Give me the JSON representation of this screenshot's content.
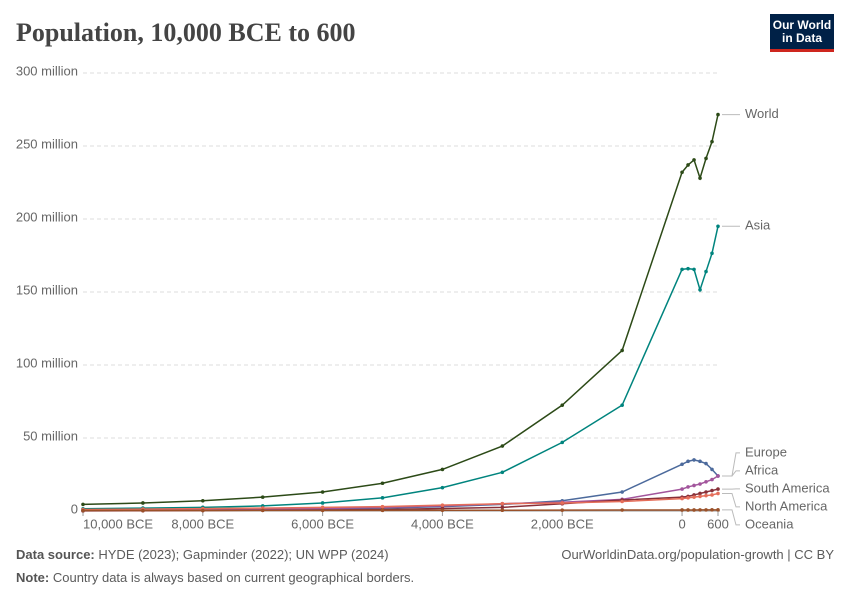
{
  "chart_data": {
    "type": "line",
    "title": "Population, 10,000 BCE to 600",
    "logo": [
      "Our World",
      "in Data"
    ],
    "x": [
      -10000,
      -9000,
      -8000,
      -7000,
      -6000,
      -5000,
      -4000,
      -3000,
      -2000,
      -1000,
      0,
      100,
      200,
      300,
      400,
      500,
      600
    ],
    "xlim": [
      -10000,
      600
    ],
    "xticks": [
      {
        "value": -10000,
        "label": "10,000 BCE"
      },
      {
        "value": -8000,
        "label": "8,000 BCE"
      },
      {
        "value": -6000,
        "label": "6,000 BCE"
      },
      {
        "value": -4000,
        "label": "4,000 BCE"
      },
      {
        "value": -2000,
        "label": "2,000 BCE"
      },
      0,
      600
    ],
    "ylim": [
      0,
      300000000
    ],
    "yticks": [
      0,
      {
        "value": 50000000,
        "label": "50 million"
      },
      {
        "value": 100000000,
        "label": "100 million"
      },
      {
        "value": 150000000,
        "label": "150 million"
      },
      {
        "value": 200000000,
        "label": "200 million"
      },
      {
        "value": 250000000,
        "label": "250 million"
      },
      {
        "value": 300000000,
        "label": "300 million"
      }
    ],
    "grid": true,
    "series": [
      {
        "name": "World",
        "color": "#2c4a17",
        "values": [
          4500000,
          5500000,
          7000000,
          9500000,
          13000000,
          19000000,
          28500000,
          44500000,
          72500000,
          110000000,
          232000000,
          237000000,
          240500000,
          228000000,
          241500000,
          253000000,
          271500000
        ]
      },
      {
        "name": "Asia",
        "color": "#00847e",
        "values": [
          1500000,
          2000000,
          2500000,
          3500000,
          5500000,
          9000000,
          16000000,
          26500000,
          47000000,
          72500000,
          165500000,
          166000000,
          165500000,
          151500000,
          164000000,
          176500000,
          195000000
        ]
      },
      {
        "name": "Europe",
        "color": "#4c6a9c",
        "values": [
          300000,
          400000,
          600000,
          1000000,
          1500000,
          2000000,
          3000000,
          4500000,
          7000000,
          13000000,
          32000000,
          34000000,
          35000000,
          34000000,
          32500000,
          28500000,
          24000000
        ]
      },
      {
        "name": "Africa",
        "color": "#a2559c",
        "values": [
          200000,
          400000,
          700000,
          1100000,
          1700000,
          2500000,
          3500000,
          5000000,
          6000000,
          8000000,
          15000000,
          16500000,
          17500000,
          18500000,
          20000000,
          21500000,
          24000000
        ]
      },
      {
        "name": "South America",
        "color": "#883039",
        "values": [
          100000,
          200000,
          300000,
          500000,
          700000,
          1000000,
          1700000,
          2500000,
          5000000,
          7500000,
          9500000,
          10000000,
          11000000,
          12000000,
          13000000,
          14000000,
          15000000
        ]
      },
      {
        "name": "North America",
        "color": "#e56e5a",
        "values": [
          1000000,
          1300000,
          1600000,
          2000000,
          2500000,
          3000000,
          4000000,
          5000000,
          5500000,
          6500000,
          8500000,
          9000000,
          9500000,
          10000000,
          10500000,
          11000000,
          12000000
        ]
      },
      {
        "name": "Oceania",
        "color": "#9a5129",
        "values": [
          300000,
          300000,
          350000,
          400000,
          400000,
          450000,
          500000,
          550000,
          600000,
          650000,
          700000,
          700000,
          700000,
          750000,
          750000,
          800000,
          800000
        ]
      }
    ],
    "source_label": "Data source:",
    "source": "HYDE (2023); Gapminder (2022); UN WPP (2024)",
    "url": "OurWorldinData.org/population-growth | CC BY",
    "note_label": "Note:",
    "note": "Country data is always based on current geographical borders."
  }
}
